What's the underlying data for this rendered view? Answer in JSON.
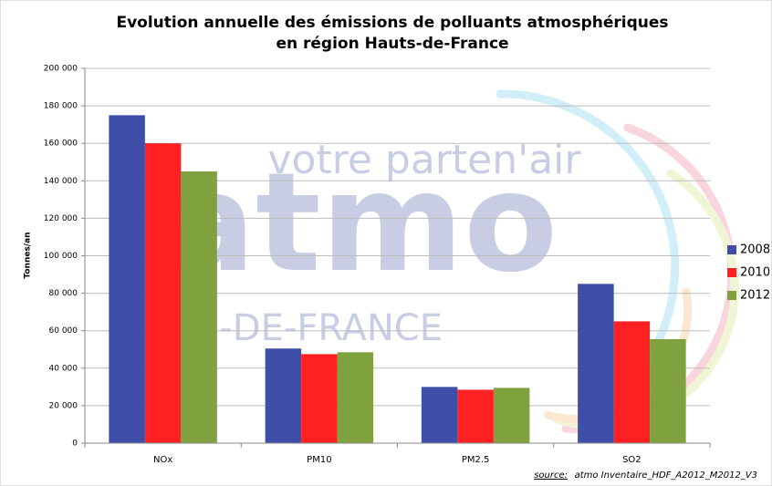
{
  "chart_data": {
    "type": "bar",
    "title": [
      "Evolution annuelle des émissions de polluants atmosphériques",
      "en région Hauts-de-France"
    ],
    "ylabel": "Tonnes/an",
    "categories": [
      "NOx",
      "PM10",
      "PM2.5",
      "SO2"
    ],
    "series": [
      {
        "name": "2008",
        "color": "#3f4ea8",
        "values": [
          175000,
          50500,
          30000,
          85000
        ]
      },
      {
        "name": "2010",
        "color": "#ff2121",
        "values": [
          160000,
          47500,
          28500,
          65000
        ]
      },
      {
        "name": "2012",
        "color": "#7fa23f",
        "values": [
          145000,
          48500,
          29500,
          55500
        ]
      }
    ],
    "ylim": [
      0,
      200000
    ],
    "yticks": [
      0,
      {
        "value": 20000,
        "label": "20 000"
      },
      {
        "value": 40000,
        "label": "40 000"
      },
      {
        "value": 60000,
        "label": "60 000"
      },
      {
        "value": 80000,
        "label": "80 000"
      },
      {
        "value": 100000,
        "label": "100 000"
      },
      {
        "value": 120000,
        "label": "120 000"
      },
      {
        "value": 140000,
        "label": "140 000"
      },
      {
        "value": 160000,
        "label": "160 000"
      },
      {
        "value": 180000,
        "label": "180 000"
      },
      {
        "value": 200000,
        "label": "200 000"
      }
    ],
    "grid": true,
    "legend": "right",
    "watermark": [
      "votre parten'air",
      "atmo",
      "S-DE-FRANCE"
    ],
    "source_label": "source:",
    "source": "atmo Inventaire_HDF_A2012_M2012_V3"
  }
}
